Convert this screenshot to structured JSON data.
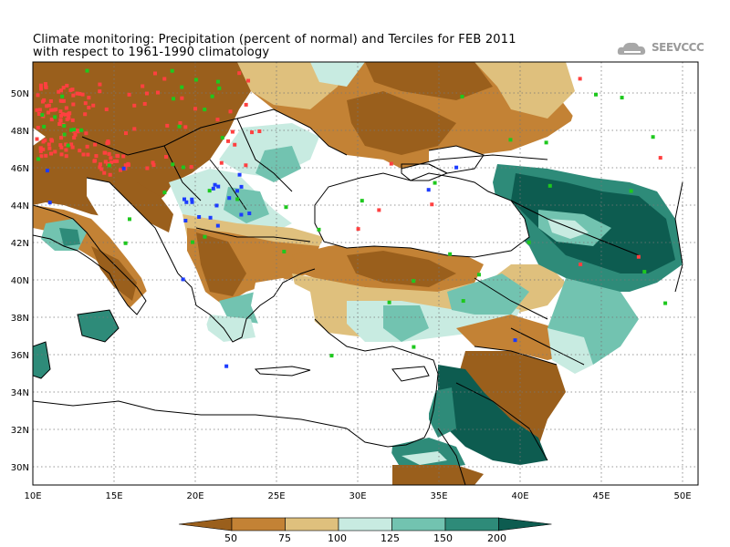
{
  "title": {
    "line1": "Climate monitoring: Precipitation (percent of normal) and Terciles for FEB 2011",
    "line2": "with respect to 1961-1990 climatology"
  },
  "logo": {
    "text": "SEEVCCC",
    "icon": "cloud-logo-icon"
  },
  "map": {
    "lon_range": [
      10,
      51
    ],
    "lat_range": [
      29,
      51.8
    ],
    "x_ticks": [
      "10E",
      "15E",
      "20E",
      "25E",
      "30E",
      "35E",
      "40E",
      "45E",
      "50E"
    ],
    "y_ticks": [
      "30N",
      "32N",
      "34N",
      "36N",
      "38N",
      "40N",
      "42N",
      "44N",
      "46N",
      "48N",
      "50N"
    ],
    "grid": true,
    "grid_style": "dotted"
  },
  "colorbar": {
    "labels": [
      "50",
      "75",
      "100",
      "125",
      "150",
      "200"
    ],
    "colors": [
      "#9a5f1c",
      "#c38235",
      "#dfc07d",
      "#c8ebe1",
      "#72c3b0",
      "#2e8b79",
      "#0d5c50"
    ]
  },
  "colors": {
    "land_no_data": "#ffffff",
    "sea": "#ffffff",
    "boundary": "#000000",
    "tercile_dry": "#ff4040",
    "tercile_wet": "#1c3cff",
    "tercile_normal": "#1ec81e"
  }
}
